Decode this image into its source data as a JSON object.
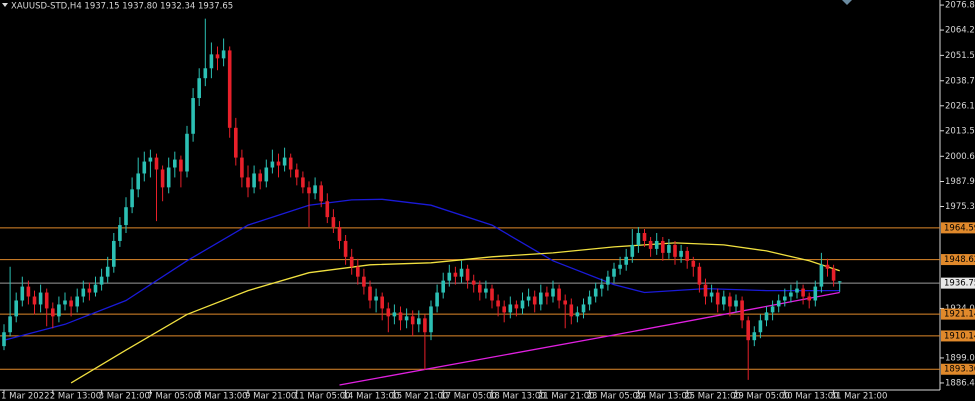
{
  "chart_data": {
    "type": "candlestick",
    "title": "XAUUSD-STD,H4  1937.15 1937.80 1932.34 1937.65",
    "up_color": "#2cc0b4",
    "down_color": "#e8202a",
    "ylim": [
      1882.9,
      2079.4
    ],
    "yticks": [
      2076.85,
      2064.25,
      {
        "value": 2051.5,
        "label": "2051.50"
      },
      {
        "value": 2038.7,
        "label": "2038.70"
      },
      {
        "value": 2026.1,
        "label": "2026.10"
      },
      {
        "value": 2013.5,
        "label": "2013.50"
      },
      2000.65,
      1987.95,
      1975.35,
      {
        "value": 1924,
        "label": "1924.00"
      },
      1899.05,
      1886.45
    ],
    "levels": [
      {
        "value": 1964.59,
        "color": "#e0892b",
        "label_bg": "#e0892b"
      },
      {
        "value": 1948.62,
        "color": "#e0892b",
        "label_bg": "#e0892b"
      },
      {
        "value": 1936.75,
        "color": "#9a9a9a",
        "label_bg": "#e8e8e8"
      },
      {
        "value": 1921.14,
        "color": "#e0892b",
        "label_bg": "#e0892b"
      },
      {
        "value": 1910.14,
        "color": "#e0892b",
        "label_bg": "#e0892b"
      },
      {
        "value": 1893.36,
        "color": "#e0892b",
        "label_bg": "#e0892b"
      }
    ],
    "categories": [
      "1 Mar 2022",
      null,
      null,
      null,
      null,
      null,
      null,
      null,
      "2 Mar 13:00",
      null,
      null,
      null,
      null,
      null,
      null,
      null,
      "3 Mar 21:00",
      null,
      null,
      null,
      null,
      null,
      null,
      null,
      "7 Mar 05:00",
      null,
      null,
      null,
      null,
      null,
      null,
      null,
      "8 Mar 13:00",
      null,
      null,
      null,
      null,
      null,
      null,
      null,
      "9 Mar 21:00",
      null,
      null,
      null,
      null,
      null,
      null,
      null,
      "11 Mar 05:00",
      null,
      null,
      null,
      null,
      null,
      null,
      null,
      "14 Mar 13:00",
      null,
      null,
      null,
      null,
      null,
      null,
      null,
      "15 Mar 21:00",
      null,
      null,
      null,
      null,
      null,
      null,
      null,
      "17 Mar 05:00",
      null,
      null,
      null,
      null,
      null,
      null,
      null,
      "18 Mar 13:00",
      null,
      null,
      null,
      null,
      null,
      null,
      null,
      "21 Mar 21:00",
      null,
      null,
      null,
      null,
      null,
      null,
      null,
      "23 Mar 05:00",
      null,
      null,
      null,
      null,
      null,
      null,
      null,
      "24 Mar 13:00",
      null,
      null,
      null,
      null,
      null,
      null,
      null,
      "25 Mar 21:00",
      null,
      null,
      null,
      null,
      null,
      null,
      null,
      "29 Mar 05:00",
      null,
      null,
      null,
      null,
      null,
      null,
      null,
      "30 Mar 13:00",
      null,
      null,
      null,
      null,
      null,
      null,
      null,
      "31 Mar 21:00",
      null
    ],
    "candles": [
      [
        1905,
        1916,
        1903,
        1912
      ],
      [
        1912,
        1945,
        1910,
        1920
      ],
      [
        1920,
        1932,
        1917,
        1928
      ],
      [
        1928,
        1940,
        1925,
        1935
      ],
      [
        1935,
        1938,
        1926,
        1930
      ],
      [
        1930,
        1933,
        1921,
        1926
      ],
      [
        1926,
        1936,
        1922,
        1932
      ],
      [
        1932,
        1934,
        1915,
        1924
      ],
      [
        1924,
        1927,
        1914,
        1920
      ],
      [
        1920,
        1930,
        1917,
        1926
      ],
      [
        1926,
        1932,
        1923,
        1928
      ],
      [
        1928,
        1930,
        1920,
        1925
      ],
      [
        1925,
        1934,
        1922,
        1930
      ],
      [
        1930,
        1938,
        1927,
        1934
      ],
      [
        1934,
        1937,
        1928,
        1932
      ],
      [
        1932,
        1940,
        1930,
        1936
      ],
      [
        1936,
        1944,
        1933,
        1940
      ],
      [
        1940,
        1950,
        1937,
        1945
      ],
      [
        1945,
        1962,
        1942,
        1958
      ],
      [
        1958,
        1970,
        1955,
        1966
      ],
      [
        1966,
        1980,
        1962,
        1975
      ],
      [
        1975,
        1990,
        1972,
        1984
      ],
      [
        1984,
        2000,
        1980,
        1992
      ],
      [
        1992,
        2003,
        1988,
        1998
      ],
      [
        1998,
        2004,
        1990,
        2000
      ],
      [
        2000,
        2002,
        1968,
        1994
      ],
      [
        1994,
        1996,
        1978,
        1985
      ],
      [
        1985,
        2000,
        1982,
        1995
      ],
      [
        1995,
        2003,
        1990,
        1999
      ],
      [
        1999,
        2001,
        1985,
        1993
      ],
      [
        1993,
        2016,
        1990,
        2012
      ],
      [
        2012,
        2035,
        2008,
        2030
      ],
      [
        2030,
        2045,
        2026,
        2040
      ],
      [
        2040,
        2070,
        2036,
        2045
      ],
      [
        2045,
        2058,
        2040,
        2052
      ],
      [
        2052,
        2056,
        2044,
        2050
      ],
      [
        2050,
        2060,
        2046,
        2054
      ],
      [
        2054,
        2056,
        2010,
        2015
      ],
      [
        2015,
        2020,
        1996,
        2000
      ],
      [
        2000,
        2004,
        1985,
        1990
      ],
      [
        1990,
        1996,
        1980,
        1985
      ],
      [
        1985,
        1996,
        1982,
        1992
      ],
      [
        1992,
        1994,
        1984,
        1988
      ],
      [
        1988,
        1999,
        1985,
        1995
      ],
      [
        1995,
        2004,
        1992,
        1998
      ],
      [
        1998,
        2002,
        1990,
        1996
      ],
      [
        1996,
        2005,
        1993,
        2000
      ],
      [
        2000,
        2002,
        1990,
        1994
      ],
      [
        1994,
        1997,
        1986,
        1990
      ],
      [
        1990,
        1993,
        1982,
        1985
      ],
      [
        1985,
        1988,
        1965,
        1982
      ],
      [
        1982,
        1990,
        1979,
        1986
      ],
      [
        1986,
        1988,
        1975,
        1978
      ],
      [
        1978,
        1982,
        1967,
        1970
      ],
      [
        1970,
        1974,
        1962,
        1965
      ],
      [
        1965,
        1968,
        1954,
        1958
      ],
      [
        1958,
        1961,
        1946,
        1950
      ],
      [
        1950,
        1954,
        1941,
        1945
      ],
      [
        1945,
        1949,
        1936,
        1940
      ],
      [
        1940,
        1944,
        1931,
        1935
      ],
      [
        1935,
        1938,
        1924,
        1928
      ],
      [
        1928,
        1934,
        1922,
        1930
      ],
      [
        1930,
        1932,
        1918,
        1924
      ],
      [
        1924,
        1927,
        1912,
        1920
      ],
      [
        1920,
        1926,
        1916,
        1922
      ],
      [
        1922,
        1925,
        1913,
        1918
      ],
      [
        1918,
        1924,
        1914,
        1920
      ],
      [
        1920,
        1923,
        1910,
        1916
      ],
      [
        1916,
        1923,
        1912,
        1919
      ],
      [
        1919,
        1921,
        1893,
        1912
      ],
      [
        1912,
        1928,
        1908,
        1925
      ],
      [
        1925,
        1936,
        1922,
        1932
      ],
      [
        1932,
        1942,
        1929,
        1938
      ],
      [
        1938,
        1946,
        1935,
        1942
      ],
      [
        1942,
        1945,
        1936,
        1940
      ],
      [
        1940,
        1948,
        1937,
        1944
      ],
      [
        1944,
        1946,
        1934,
        1938
      ],
      [
        1938,
        1941,
        1932,
        1936
      ],
      [
        1936,
        1938,
        1928,
        1932
      ],
      [
        1932,
        1938,
        1929,
        1934
      ],
      [
        1934,
        1936,
        1924,
        1928
      ],
      [
        1928,
        1931,
        1920,
        1925
      ],
      [
        1925,
        1928,
        1917,
        1922
      ],
      [
        1922,
        1930,
        1919,
        1926
      ],
      [
        1926,
        1928,
        1920,
        1924
      ],
      [
        1924,
        1932,
        1921,
        1928
      ],
      [
        1928,
        1934,
        1925,
        1930
      ],
      [
        1930,
        1933,
        1922,
        1926
      ],
      [
        1926,
        1936,
        1923,
        1932
      ],
      [
        1932,
        1935,
        1926,
        1930
      ],
      [
        1930,
        1938,
        1927,
        1934
      ],
      [
        1934,
        1936,
        1924,
        1928
      ],
      [
        1928,
        1931,
        1914,
        1926
      ],
      [
        1926,
        1929,
        1916,
        1920
      ],
      [
        1920,
        1925,
        1917,
        1922
      ],
      [
        1922,
        1929,
        1919,
        1926
      ],
      [
        1926,
        1933,
        1923,
        1930
      ],
      [
        1930,
        1937,
        1927,
        1934
      ],
      [
        1934,
        1939,
        1930,
        1936
      ],
      [
        1936,
        1943,
        1933,
        1940
      ],
      [
        1940,
        1947,
        1937,
        1944
      ],
      [
        1944,
        1950,
        1941,
        1946
      ],
      [
        1946,
        1954,
        1943,
        1950
      ],
      [
        1950,
        1964,
        1947,
        1956
      ],
      [
        1956,
        1965,
        1952,
        1962
      ],
      [
        1962,
        1964,
        1955,
        1958
      ],
      [
        1958,
        1960,
        1950,
        1954
      ],
      [
        1954,
        1962,
        1951,
        1958
      ],
      [
        1958,
        1960,
        1948,
        1952
      ],
      [
        1952,
        1959,
        1949,
        1956
      ],
      [
        1956,
        1958,
        1946,
        1950
      ],
      [
        1950,
        1956,
        1947,
        1953
      ],
      [
        1953,
        1955,
        1944,
        1948
      ],
      [
        1948,
        1950,
        1940,
        1945
      ],
      [
        1945,
        1947,
        1932,
        1936
      ],
      [
        1936,
        1939,
        1926,
        1930
      ],
      [
        1930,
        1936,
        1927,
        1932
      ],
      [
        1932,
        1934,
        1922,
        1926
      ],
      [
        1926,
        1933,
        1923,
        1930
      ],
      [
        1930,
        1932,
        1920,
        1925
      ],
      [
        1925,
        1931,
        1922,
        1928
      ],
      [
        1928,
        1930,
        1914,
        1918
      ],
      [
        1918,
        1920,
        1888,
        1908
      ],
      [
        1908,
        1915,
        1905,
        1912
      ],
      [
        1912,
        1921,
        1909,
        1918
      ],
      [
        1918,
        1925,
        1915,
        1922
      ],
      [
        1922,
        1928,
        1918,
        1925
      ],
      [
        1925,
        1931,
        1922,
        1928
      ],
      [
        1928,
        1934,
        1925,
        1930
      ],
      [
        1930,
        1936,
        1927,
        1932
      ],
      [
        1932,
        1938,
        1929,
        1934
      ],
      [
        1934,
        1936,
        1926,
        1930
      ],
      [
        1930,
        1932,
        1924,
        1928
      ],
      [
        1928,
        1938,
        1925,
        1935
      ],
      [
        1935,
        1952,
        1932,
        1946
      ],
      [
        1946,
        1949,
        1940,
        1944
      ],
      [
        1944,
        1946,
        1935,
        1938
      ],
      [
        1937.15,
        1937.8,
        1932.34,
        1937.65
      ]
    ],
    "overlays": [
      {
        "color": "#1a1ad8",
        "x": [
          0,
          10,
          20,
          30,
          40,
          50,
          57,
          62,
          70,
          80,
          90,
          100,
          105,
          115,
          125,
          137
        ],
        "values": [
          1908,
          1916,
          1928,
          1948,
          1966,
          1976,
          1978.7,
          1979,
          1976,
          1966,
          1948,
          1936,
          1932,
          1934,
          1933,
          1933
        ]
      },
      {
        "color": "#f0e040",
        "x": [
          11,
          20,
          30,
          40,
          50,
          60,
          70,
          80,
          90,
          100,
          110,
          118,
          125,
          132,
          137
        ],
        "values": [
          1886.5,
          1903,
          1921,
          1933,
          1942,
          1946,
          1947,
          1950,
          1952,
          1955,
          1957,
          1956,
          1953,
          1948,
          1943
        ]
      },
      {
        "color": "#e020e0",
        "x": [
          55,
          100,
          125,
          137
        ],
        "values": [
          1885.4,
          1910.6,
          1925,
          1932
        ]
      }
    ]
  }
}
